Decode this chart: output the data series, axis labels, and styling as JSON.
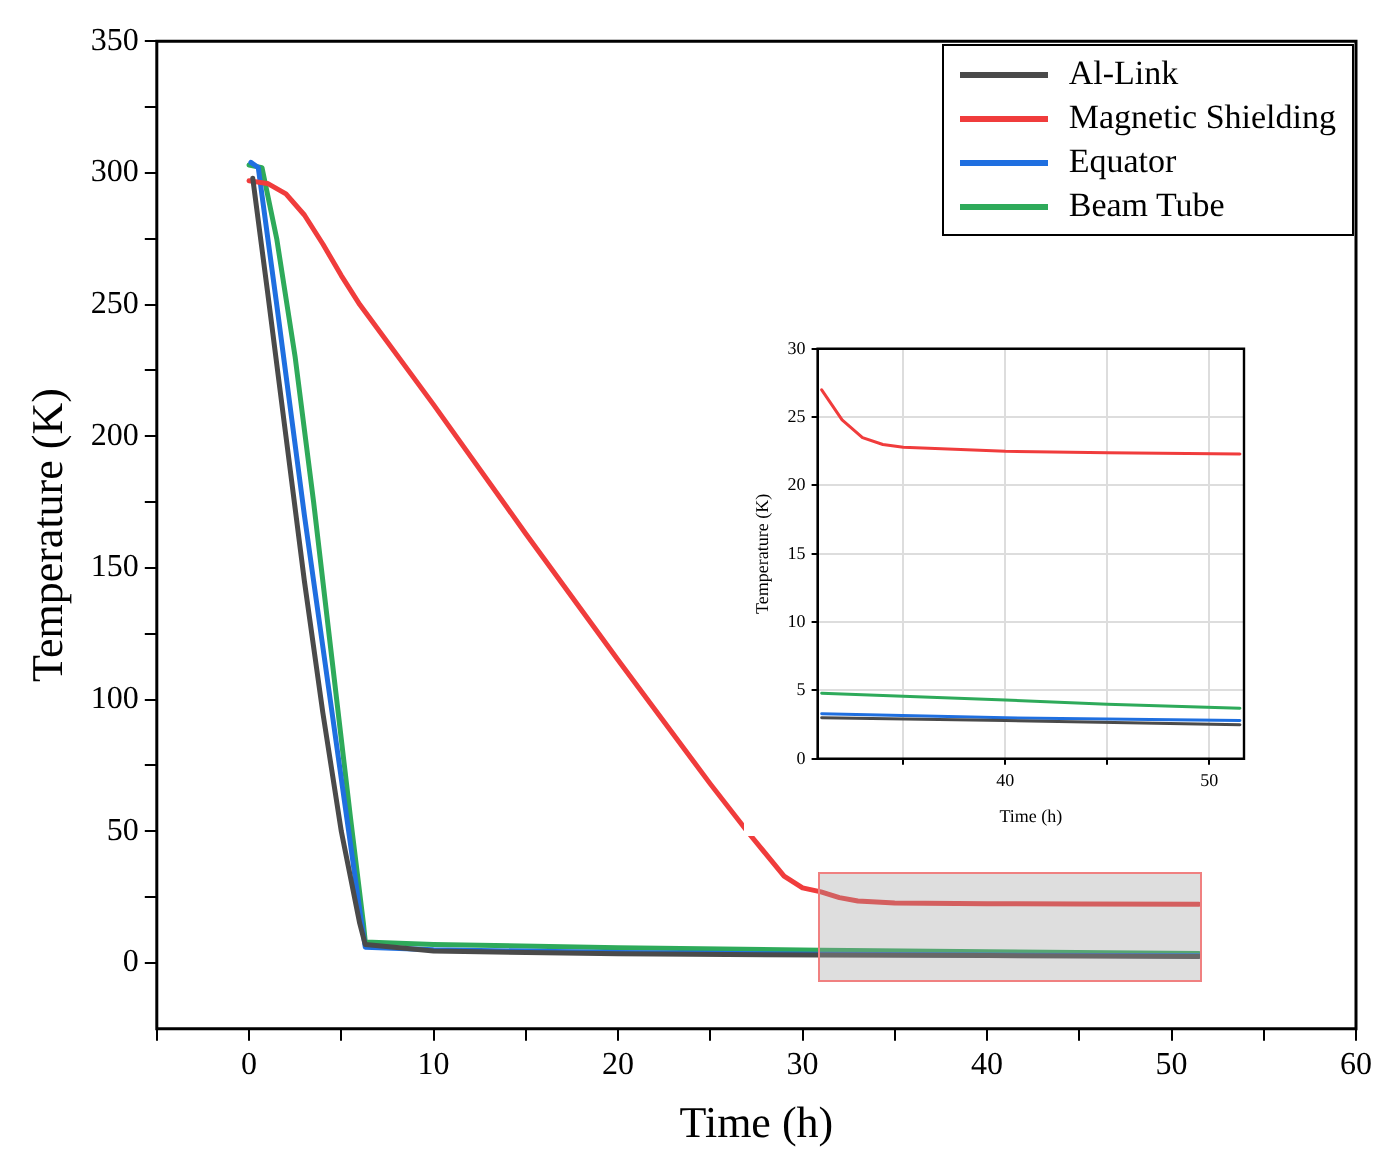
{
  "chart_data": [
    {
      "type": "line",
      "xlabel": "Time (h)",
      "ylabel": "Temperature (K)",
      "xlim": [
        -5,
        60
      ],
      "ylim": [
        -25,
        350
      ],
      "xticks": [
        {
          "value": -5,
          "label": null
        },
        0,
        {
          "value": 5,
          "label": null
        },
        10,
        {
          "value": 15,
          "label": null
        },
        20,
        {
          "value": 25,
          "label": null
        },
        30,
        {
          "value": 35,
          "label": null
        },
        40,
        {
          "value": 45,
          "label": null
        },
        50,
        {
          "value": 55,
          "label": null
        },
        60
      ],
      "yticks": [
        0,
        {
          "value": 25,
          "label": null
        },
        50,
        {
          "value": 75,
          "label": null
        },
        100,
        {
          "value": 125,
          "label": null
        },
        150,
        {
          "value": 175,
          "label": null
        },
        200,
        {
          "value": 225,
          "label": null
        },
        250,
        {
          "value": 275,
          "label": null
        },
        300,
        {
          "value": 325,
          "label": null
        },
        350
      ],
      "grid": false,
      "legend": "top right",
      "marker": "none",
      "line_style": "solid",
      "series": [
        {
          "name": "Al-Link",
          "color": "#4a4a4a",
          "x": [
            0.2,
            1,
            2,
            3,
            4,
            5,
            6,
            6.3,
            10,
            20,
            31,
            40,
            51.5
          ],
          "values": [
            298,
            255,
            200,
            145,
            95,
            50,
            15,
            7,
            4.5,
            3.5,
            3.0,
            2.8,
            2.5
          ]
        },
        {
          "name": "Magnetic Shielding",
          "color": "#f03c3c",
          "x": [
            0,
            1,
            2,
            3,
            4,
            5,
            6,
            10,
            15,
            20,
            25,
            27,
            29,
            30,
            31,
            32,
            33,
            35,
            40,
            45,
            51.5
          ],
          "values": [
            297,
            296,
            292,
            284,
            273,
            261,
            250,
            212,
            163,
            115,
            68,
            50,
            33,
            28.5,
            27,
            24.8,
            23.5,
            22.8,
            22.5,
            22.4,
            22.3
          ]
        },
        {
          "name": "Equator",
          "color": "#1f6fe0",
          "x": [
            0.1,
            0.5,
            1.5,
            3,
            4.5,
            6,
            6.3,
            10,
            20,
            31,
            40,
            51.5
          ],
          "values": [
            304,
            302,
            250,
            170,
            95,
            20,
            6,
            5,
            4,
            3.3,
            3.0,
            2.7
          ]
        },
        {
          "name": "Beam Tube",
          "color": "#2eaa5a",
          "x": [
            0,
            0.7,
            1.5,
            2.5,
            3.5,
            4.5,
            5.5,
            6.2,
            6.3,
            10,
            20,
            31,
            40,
            51.5
          ],
          "values": [
            303,
            302,
            275,
            230,
            175,
            115,
            55,
            15,
            8,
            7,
            5.8,
            4.8,
            4.3,
            3.6
          ]
        }
      ]
    },
    {
      "type": "line",
      "xlabel": "Time (h)",
      "ylabel": "Temperature (K)",
      "xlim": [
        30.8,
        51.7
      ],
      "ylim": [
        0,
        30
      ],
      "xticks": [
        {
          "value": 35,
          "label": null
        },
        40,
        {
          "value": 45,
          "label": null
        },
        50
      ],
      "yticks": [
        0,
        5,
        10,
        15,
        20,
        25,
        30
      ],
      "grid": true,
      "marker": "none",
      "line_style": "solid",
      "series": [
        {
          "color": "#4a4a4a",
          "x": [
            31,
            40,
            51.5
          ],
          "values": [
            3.0,
            2.8,
            2.5
          ]
        },
        {
          "color": "#f03c3c",
          "x": [
            31,
            32,
            33,
            34,
            35,
            40,
            45,
            51.5
          ],
          "values": [
            27,
            24.8,
            23.5,
            23,
            22.8,
            22.5,
            22.4,
            22.3
          ]
        },
        {
          "color": "#1f6fe0",
          "x": [
            31,
            40,
            51.5
          ],
          "values": [
            3.3,
            3.0,
            2.8
          ]
        },
        {
          "color": "#2eaa5a",
          "x": [
            31,
            40,
            45,
            51.5
          ],
          "values": [
            4.8,
            4.3,
            4.0,
            3.7
          ]
        }
      ]
    }
  ]
}
